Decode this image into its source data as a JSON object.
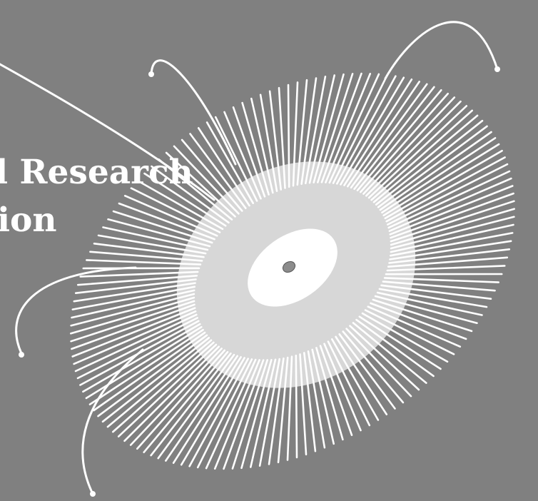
{
  "headline": {
    "line1": "nd Research",
    "line2": "ation"
  },
  "colors": {
    "background": "#808080",
    "text": "#ffffff",
    "rays": "#ffffff",
    "halo": "#e6e6e6",
    "core": "#ffffff",
    "center_object": "#8c8c8c"
  },
  "illustration": {
    "name": "radial-starburst-graphic",
    "ray_count": 150,
    "curved_lines": 5
  }
}
